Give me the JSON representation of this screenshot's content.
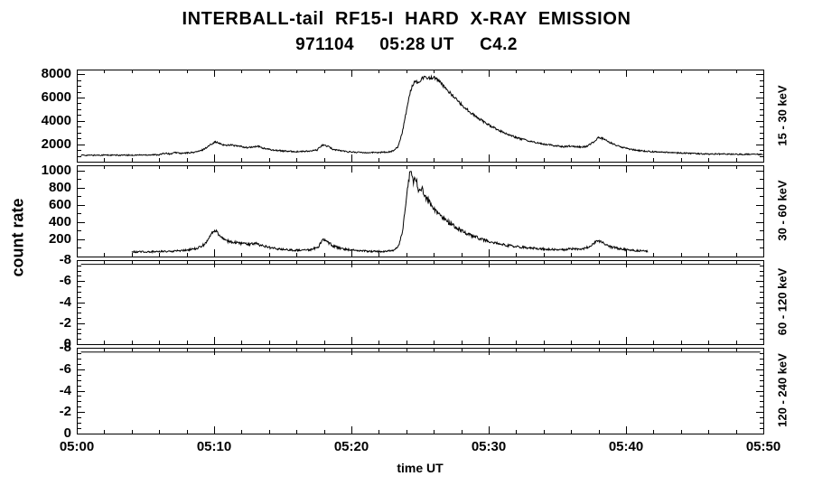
{
  "page": {
    "background": "#ffffff",
    "line_color": "#000000"
  },
  "title": {
    "line1": "INTERBALL-tail  RF15-I  HARD  X-RAY  EMISSION",
    "line2": "971104     05:28 UT     C4.2"
  },
  "axis_labels": {
    "y": "count rate",
    "x": "time UT"
  },
  "x_axis": {
    "tick_labels": [
      "05:00",
      "05:10",
      "05:20",
      "05:30",
      "05:40",
      "05:50"
    ],
    "tick_minutes": [
      0,
      10,
      20,
      30,
      40,
      50
    ],
    "minor_step_minutes": 2,
    "range_minutes": [
      0,
      50
    ]
  },
  "chart_data": [
    {
      "type": "line",
      "name": "panel-15-30-keV",
      "right_label": "15 - 30 keV",
      "ylim": [
        500,
        8400
      ],
      "yticks": [
        2000,
        4000,
        6000,
        8000
      ],
      "ytick_minor_step": 500,
      "noise_k": 1.6,
      "x_minutes": [
        0.3,
        1,
        2,
        3,
        4,
        5,
        6,
        6.5,
        6.8,
        7.2,
        7.6,
        8,
        8.5,
        9,
        9.5,
        9.9,
        10.1,
        10.4,
        10.8,
        11.2,
        11.6,
        12,
        12.4,
        12.8,
        13.2,
        13.6,
        14,
        14.5,
        15,
        15.5,
        16,
        16.5,
        17,
        17.5,
        17.9,
        18.3,
        18.7,
        19.2,
        19.8,
        20.5,
        21.2,
        22,
        22.6,
        23,
        23.4,
        23.7,
        24,
        24.3,
        24.6,
        24.9,
        25.1,
        25.4,
        25.7,
        26,
        26.3,
        26.7,
        27.1,
        27.6,
        28.1,
        28.6,
        29.1,
        29.6,
        30.1,
        30.8,
        31.5,
        32.2,
        33,
        33.8,
        34.6,
        35.4,
        36,
        36.4,
        36.8,
        37.2,
        37.6,
        38,
        38.4,
        38.8,
        39.2,
        39.7,
        40.2,
        40.8,
        41.5,
        42.3,
        43.2,
        44.2,
        45.2,
        46.2,
        47.2,
        48.2,
        49.2,
        50
      ],
      "y_counts": [
        1060,
        1050,
        1070,
        1050,
        1060,
        1080,
        1100,
        1250,
        1150,
        1300,
        1200,
        1250,
        1300,
        1420,
        1750,
        2100,
        2200,
        2050,
        1900,
        1950,
        1850,
        1800,
        1700,
        1750,
        1820,
        1650,
        1550,
        1480,
        1420,
        1380,
        1360,
        1380,
        1400,
        1500,
        1950,
        1800,
        1550,
        1450,
        1350,
        1300,
        1280,
        1300,
        1320,
        1400,
        1800,
        3000,
        4800,
        6600,
        7400,
        7300,
        7600,
        7800,
        7650,
        7750,
        7500,
        7000,
        6500,
        5900,
        5300,
        4800,
        4350,
        3950,
        3600,
        3150,
        2800,
        2500,
        2250,
        2050,
        1900,
        1780,
        1850,
        1780,
        1750,
        1850,
        2150,
        2600,
        2450,
        2150,
        1950,
        1750,
        1600,
        1480,
        1380,
        1320,
        1280,
        1230,
        1180,
        1150,
        1160,
        1130,
        1140,
        1120
      ]
    },
    {
      "type": "line",
      "name": "panel-30-60-keV",
      "right_label": "30 - 60 keV",
      "ylim": [
        0,
        1060
      ],
      "yticks": [
        200,
        400,
        600,
        800,
        1000
      ],
      "ytick_minor_step": 100,
      "noise_k": 1.3,
      "x_minutes": [
        4,
        5,
        6,
        7,
        8,
        8.8,
        9.4,
        9.8,
        10.1,
        10.4,
        10.8,
        11.2,
        11.6,
        12,
        12.5,
        13,
        13.4,
        14,
        14.6,
        15.2,
        16,
        17,
        17.6,
        17.9,
        18.3,
        18.7,
        19.2,
        19.8,
        20.6,
        21.4,
        22.2,
        23,
        23.4,
        23.7,
        23.9,
        24.1,
        24.3,
        24.5,
        24.7,
        24.9,
        25.1,
        25.4,
        25.7,
        26,
        26.4,
        26.8,
        27.3,
        27.8,
        28.3,
        28.8,
        29.3,
        29.8,
        30.4,
        31,
        31.8,
        32.6,
        33.4,
        34.2,
        35,
        35.6,
        36,
        36.4,
        36.9,
        37.4,
        37.9,
        38.2,
        38.6,
        39,
        39.5,
        40,
        40.6,
        41.2,
        41.6
      ],
      "y_counts": [
        55,
        55,
        58,
        62,
        75,
        95,
        150,
        260,
        300,
        240,
        190,
        170,
        160,
        150,
        140,
        155,
        130,
        105,
        90,
        80,
        72,
        78,
        110,
        200,
        165,
        120,
        95,
        80,
        68,
        60,
        58,
        70,
        110,
        260,
        520,
        820,
        1000,
        860,
        920,
        760,
        800,
        690,
        640,
        560,
        490,
        430,
        370,
        320,
        275,
        240,
        210,
        185,
        160,
        140,
        120,
        105,
        95,
        85,
        78,
        80,
        92,
        85,
        88,
        120,
        180,
        165,
        130,
        108,
        92,
        82,
        72,
        65,
        60
      ]
    },
    {
      "type": "line",
      "name": "panel-60-120-keV",
      "right_label": "60 - 120 keV",
      "ylim": [
        0,
        -8
      ],
      "yticks": [
        0,
        -2,
        -4,
        -6,
        -8
      ],
      "ytick_minor_step": 0.5,
      "noise_k": 0,
      "x_minutes": [
        0.3,
        49.8
      ],
      "y_counts": [
        -7.6,
        -7.6
      ]
    },
    {
      "type": "line",
      "name": "panel-120-240-keV",
      "right_label": "120 - 240 keV",
      "ylim": [
        0,
        -8
      ],
      "yticks": [
        0,
        -2,
        -4,
        -6,
        -8
      ],
      "ytick_minor_step": 0.5,
      "noise_k": 0,
      "x_minutes": [
        0.3,
        49.8
      ],
      "y_counts": [
        -7.6,
        -7.6
      ]
    }
  ]
}
